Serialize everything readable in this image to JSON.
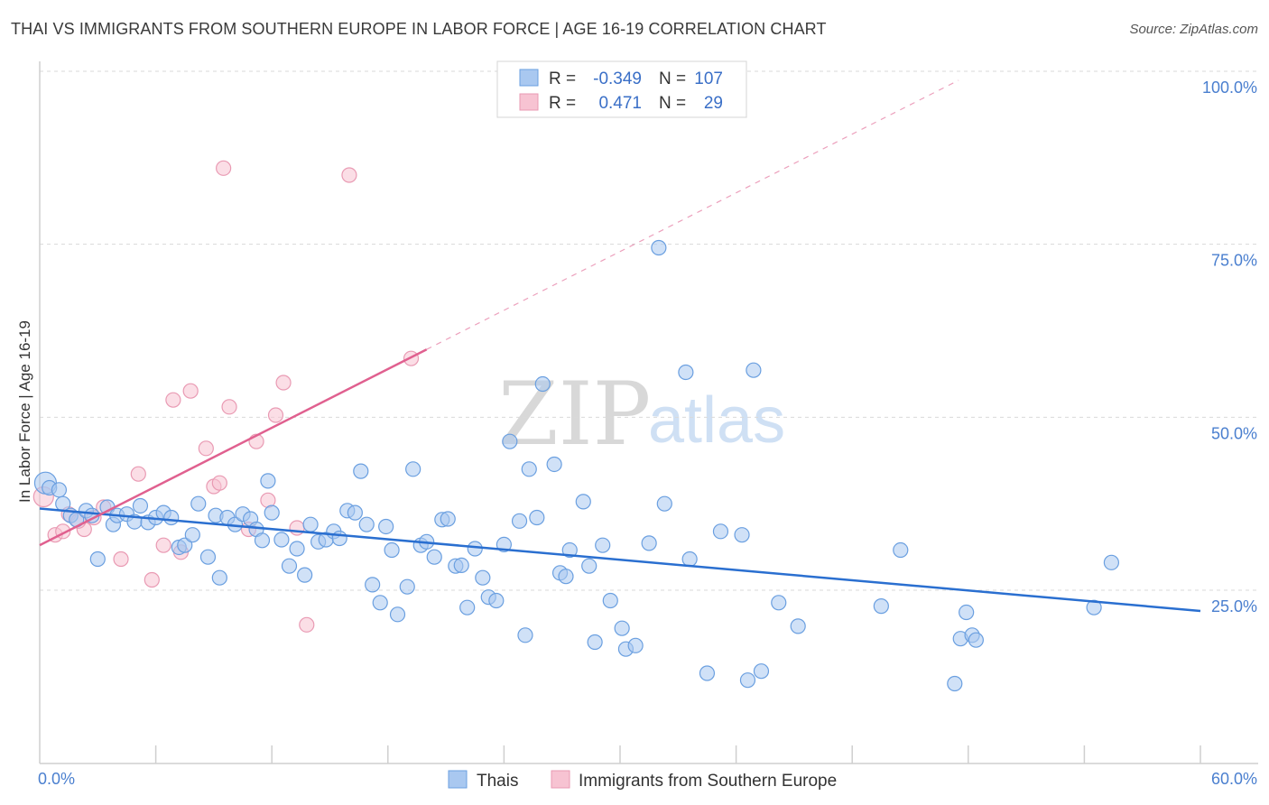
{
  "header": {
    "title": "THAI VS IMMIGRANTS FROM SOUTHERN EUROPE IN LABOR FORCE | AGE 16-19 CORRELATION CHART",
    "source": "Source: ZipAtlas.com"
  },
  "watermark": {
    "zip": "ZIP",
    "atlas": "atlas"
  },
  "colors": {
    "thai_fill": "#a9c8f0",
    "thai_stroke": "#6a9fe0",
    "thai_line": "#2a6fd0",
    "imm_fill": "#f7c3d2",
    "imm_stroke": "#e99ab3",
    "imm_line": "#e0608f",
    "grid": "#d9d9d9",
    "tick_label": "#4a7fcf"
  },
  "stats_box": {
    "rows": [
      {
        "r_label": "R =",
        "r_value": "-0.349",
        "n_label": "N =",
        "n_value": "107"
      },
      {
        "r_label": "R =",
        "r_value": "0.471",
        "n_label": "N =",
        "n_value": "29"
      }
    ]
  },
  "chart_data": {
    "type": "scatter",
    "title": "THAI VS IMMIGRANTS FROM SOUTHERN EUROPE IN LABOR FORCE | AGE 16-19 CORRELATION CHART",
    "xlabel": "",
    "ylabel": "In Labor Force | Age 16-19",
    "xlim": [
      0,
      60
    ],
    "ylim": [
      0,
      102
    ],
    "x_tick_labels": [
      "0.0%",
      "60.0%"
    ],
    "y_tick_values": [
      25,
      50,
      75,
      100
    ],
    "y_tick_labels": [
      "25.0%",
      "50.0%",
      "75.0%",
      "100.0%"
    ],
    "grid": "horizontal dashed",
    "legend_position": "bottom",
    "series": [
      {
        "name": "Thais",
        "R": -0.349,
        "N": 107,
        "trend": {
          "x": [
            0,
            60
          ],
          "y": [
            36.8,
            22.0
          ]
        },
        "points": [
          [
            0.3,
            40.5
          ],
          [
            0.5,
            39.8
          ],
          [
            1.0,
            39.5
          ],
          [
            1.2,
            37.5
          ],
          [
            1.6,
            35.8
          ],
          [
            1.9,
            35.2
          ],
          [
            2.4,
            36.5
          ],
          [
            2.7,
            35.8
          ],
          [
            3.0,
            29.5
          ],
          [
            3.5,
            37.0
          ],
          [
            3.8,
            34.5
          ],
          [
            4.0,
            35.8
          ],
          [
            4.5,
            36.0
          ],
          [
            4.9,
            34.9
          ],
          [
            5.2,
            37.2
          ],
          [
            5.6,
            34.8
          ],
          [
            6.0,
            35.5
          ],
          [
            6.4,
            36.2
          ],
          [
            6.8,
            35.5
          ],
          [
            7.2,
            31.2
          ],
          [
            7.5,
            31.5
          ],
          [
            7.9,
            33.0
          ],
          [
            8.2,
            37.5
          ],
          [
            8.7,
            29.8
          ],
          [
            9.1,
            35.8
          ],
          [
            9.3,
            26.8
          ],
          [
            9.7,
            35.5
          ],
          [
            10.1,
            34.5
          ],
          [
            10.5,
            36.0
          ],
          [
            10.9,
            35.3
          ],
          [
            11.2,
            33.8
          ],
          [
            11.5,
            32.2
          ],
          [
            11.8,
            40.8
          ],
          [
            12.0,
            36.2
          ],
          [
            12.5,
            32.3
          ],
          [
            12.9,
            28.5
          ],
          [
            13.3,
            31.0
          ],
          [
            13.7,
            27.2
          ],
          [
            14.0,
            34.5
          ],
          [
            14.4,
            32.0
          ],
          [
            14.8,
            32.3
          ],
          [
            15.2,
            33.5
          ],
          [
            15.5,
            32.5
          ],
          [
            15.9,
            36.5
          ],
          [
            16.3,
            36.2
          ],
          [
            16.6,
            42.2
          ],
          [
            16.9,
            34.5
          ],
          [
            17.2,
            25.8
          ],
          [
            17.6,
            23.2
          ],
          [
            17.9,
            34.2
          ],
          [
            18.2,
            30.8
          ],
          [
            18.5,
            21.5
          ],
          [
            19.0,
            25.5
          ],
          [
            19.3,
            42.5
          ],
          [
            19.7,
            31.5
          ],
          [
            20.0,
            32.0
          ],
          [
            20.4,
            29.8
          ],
          [
            20.8,
            35.2
          ],
          [
            21.1,
            35.3
          ],
          [
            21.5,
            28.5
          ],
          [
            21.8,
            28.6
          ],
          [
            22.1,
            22.5
          ],
          [
            22.5,
            31.0
          ],
          [
            22.9,
            26.8
          ],
          [
            23.2,
            24.0
          ],
          [
            23.6,
            23.5
          ],
          [
            24.0,
            31.6
          ],
          [
            24.3,
            46.5
          ],
          [
            24.8,
            35.0
          ],
          [
            25.1,
            18.5
          ],
          [
            25.3,
            42.5
          ],
          [
            25.7,
            35.5
          ],
          [
            26.0,
            54.8
          ],
          [
            26.6,
            43.2
          ],
          [
            26.9,
            27.5
          ],
          [
            27.2,
            27.0
          ],
          [
            27.4,
            30.8
          ],
          [
            28.1,
            37.8
          ],
          [
            28.4,
            28.5
          ],
          [
            28.7,
            17.5
          ],
          [
            29.1,
            31.5
          ],
          [
            29.5,
            23.5
          ],
          [
            30.1,
            19.5
          ],
          [
            30.3,
            16.5
          ],
          [
            30.8,
            17.0
          ],
          [
            31.5,
            31.8
          ],
          [
            32.0,
            74.5
          ],
          [
            32.3,
            37.5
          ],
          [
            33.4,
            56.5
          ],
          [
            33.6,
            29.5
          ],
          [
            34.5,
            13.0
          ],
          [
            35.2,
            33.5
          ],
          [
            36.3,
            33.0
          ],
          [
            36.6,
            12.0
          ],
          [
            36.9,
            56.8
          ],
          [
            37.3,
            13.3
          ],
          [
            38.2,
            23.2
          ],
          [
            39.2,
            19.8
          ],
          [
            43.5,
            22.7
          ],
          [
            44.5,
            30.8
          ],
          [
            47.3,
            11.5
          ],
          [
            47.6,
            18.0
          ],
          [
            47.9,
            21.8
          ],
          [
            48.2,
            18.5
          ],
          [
            54.5,
            22.5
          ],
          [
            55.4,
            29.0
          ],
          [
            48.4,
            17.8
          ]
        ]
      },
      {
        "name": "Immigrants from Southern Europe",
        "R": 0.471,
        "N": 29,
        "trend": {
          "x": [
            0,
            20
          ],
          "y": [
            31.5,
            59.8
          ]
        },
        "trend_dashed": {
          "x": [
            20,
            47.5
          ],
          "y": [
            59.8,
            98.7
          ]
        },
        "points": [
          [
            0.2,
            38.5
          ],
          [
            0.8,
            33.0
          ],
          [
            1.2,
            33.5
          ],
          [
            1.5,
            36.0
          ],
          [
            2.3,
            33.8
          ],
          [
            2.8,
            35.5
          ],
          [
            3.3,
            37.0
          ],
          [
            4.2,
            29.5
          ],
          [
            5.1,
            41.8
          ],
          [
            5.8,
            26.5
          ],
          [
            6.4,
            31.5
          ],
          [
            6.9,
            52.5
          ],
          [
            7.3,
            30.5
          ],
          [
            7.8,
            53.8
          ],
          [
            8.6,
            45.5
          ],
          [
            9.0,
            40.0
          ],
          [
            9.3,
            40.5
          ],
          [
            9.5,
            86.0
          ],
          [
            9.8,
            51.5
          ],
          [
            10.8,
            33.8
          ],
          [
            11.2,
            46.5
          ],
          [
            11.8,
            38.0
          ],
          [
            12.2,
            50.3
          ],
          [
            12.6,
            55.0
          ],
          [
            13.3,
            34.0
          ],
          [
            13.8,
            20.0
          ],
          [
            16.0,
            85.0
          ],
          [
            19.2,
            58.5
          ],
          [
            2.0,
            35.0
          ]
        ]
      }
    ]
  }
}
